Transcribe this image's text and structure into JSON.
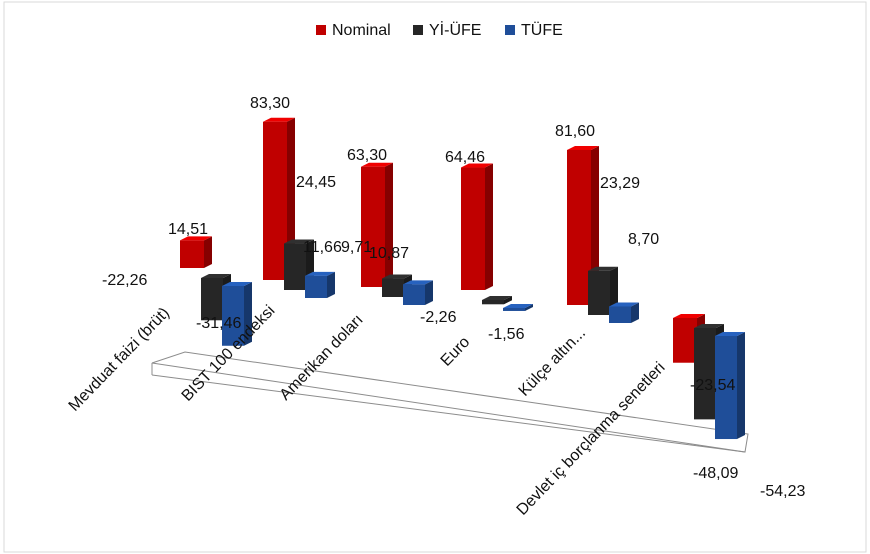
{
  "chart_data": {
    "type": "bar",
    "title": "",
    "xlabel": "",
    "ylabel": "",
    "ylim": [
      -60,
      90
    ],
    "grid": false,
    "legend_position": "top-center",
    "categories": [
      "Mevduat faizi (brüt)",
      "BIST 100 endeksi",
      "Amerikan doları",
      "Euro",
      "Külçe altın...",
      "Devlet iç borçlanma senetleri"
    ],
    "series": [
      {
        "name": "Nominal",
        "color": "#c00000",
        "values": [
          14.51,
          83.3,
          63.3,
          64.46,
          81.6,
          -23.54
        ]
      },
      {
        "name": "Yİ-ÜFE",
        "color": "#262626",
        "values": [
          -22.26,
          24.45,
          9.71,
          -2.26,
          23.29,
          -48.09
        ]
      },
      {
        "name": "TÜFE",
        "color": "#1f4e99",
        "values": [
          -31.46,
          11.66,
          10.87,
          -1.56,
          8.7,
          -54.23
        ]
      }
    ],
    "data_labels": [
      [
        "14,51",
        "83,30",
        "63,30",
        "64,46",
        "81,60",
        "-23,54"
      ],
      [
        "-22,26",
        "24,45",
        "9,71",
        "-2,26",
        "23,29",
        "-48,09"
      ],
      [
        "-31,46",
        "11,66",
        "10,87",
        "-1,56",
        "8,70",
        "-54,23"
      ]
    ]
  }
}
